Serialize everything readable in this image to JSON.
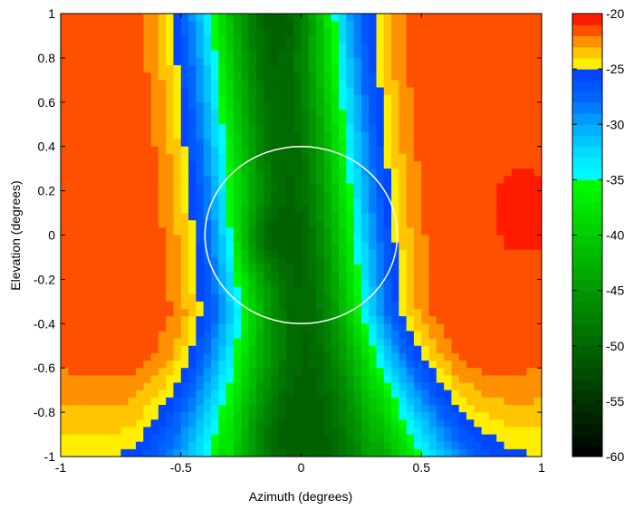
{
  "chart_data": {
    "type": "heatmap",
    "title": "",
    "xlabel": "Azimuth (degrees)",
    "ylabel": "Elevation (degrees)",
    "xlim": [
      -1,
      1
    ],
    "ylim": [
      -1,
      1
    ],
    "x_ticks": [
      -1,
      -0.5,
      0,
      0.5,
      1
    ],
    "x_tick_labels": [
      "-1",
      "-0.5",
      "0",
      "0.5",
      "1"
    ],
    "y_ticks": [
      1,
      0.8,
      0.6,
      0.4,
      0.2,
      0,
      -0.2,
      -0.4,
      -0.6,
      -0.8,
      -1
    ],
    "y_tick_labels": [
      "1",
      "0.8",
      "0.6",
      "0.4",
      "0.2",
      "0",
      "-0.2",
      "-0.4",
      "-0.6",
      "-0.8",
      "-1"
    ],
    "colorbar": {
      "clim": [
        -60,
        -20
      ],
      "ticks": [
        -20,
        -25,
        -30,
        -35,
        -40,
        -45,
        -50,
        -55,
        -60
      ],
      "tick_labels": [
        "-20",
        "-25",
        "-30",
        "-35",
        "-40",
        "-45",
        "-50",
        "-55",
        "-60"
      ]
    },
    "grid": false,
    "circle_overlay": {
      "center": [
        0,
        0
      ],
      "radius": 0.4,
      "color": "#ffffff"
    },
    "colors": {
      "yellow": "#ffff00",
      "blue_dark": "#0050ff",
      "cyan": "#00ffff",
      "green": "#00cc00",
      "black": "#000000"
    }
  }
}
